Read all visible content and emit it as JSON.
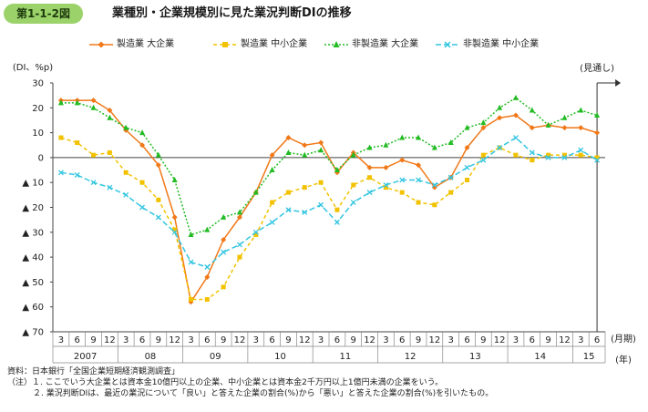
{
  "header": {
    "figure_number": "第1-1-2図",
    "title": "業種別・企業規模別に見た業況判断DIの推移"
  },
  "chart_data": {
    "type": "line",
    "ylabel": "(DI、%p)",
    "ylim": [
      -70,
      30
    ],
    "yticks": [
      30,
      20,
      10,
      0,
      -10,
      -20,
      -30,
      -40,
      -50,
      -60,
      -70
    ],
    "ytick_labels": [
      "30",
      "20",
      "10",
      "0",
      "▲ 10",
      "▲ 20",
      "▲ 30",
      "▲ 40",
      "▲ 50",
      "▲ 60",
      "▲ 70"
    ],
    "x": [
      "3",
      "6",
      "9",
      "12",
      "3",
      "6",
      "9",
      "12",
      "3",
      "6",
      "9",
      "12",
      "3",
      "6",
      "9",
      "12",
      "3",
      "6",
      "9",
      "12",
      "3",
      "6",
      "9",
      "12",
      "3",
      "6",
      "9",
      "12",
      "3",
      "6",
      "9",
      "12",
      "3",
      "6"
    ],
    "years": [
      {
        "label": "2007",
        "start": 0,
        "end": 3
      },
      {
        "label": "08",
        "start": 4,
        "end": 7
      },
      {
        "label": "09",
        "start": 8,
        "end": 11
      },
      {
        "label": "10",
        "start": 12,
        "end": 15
      },
      {
        "label": "11",
        "start": 16,
        "end": 19
      },
      {
        "label": "12",
        "start": 20,
        "end": 23
      },
      {
        "label": "13",
        "start": 24,
        "end": 27
      },
      {
        "label": "14",
        "start": 28,
        "end": 31
      },
      {
        "label": "15",
        "start": 32,
        "end": 33
      }
    ],
    "x_unit_label": "(月期)",
    "year_unit_label": "(年)",
    "forecast_label": "(見通し)",
    "forecast_index": 33,
    "grid": false,
    "legend_position": "top",
    "series": [
      {
        "name": "製造業 大企業",
        "color": "#f07818",
        "marker": "diamond",
        "dashed": false,
        "values": [
          23,
          23,
          23,
          19,
          11,
          5,
          -3,
          -24,
          -58,
          -48,
          -33,
          -24,
          -14,
          1,
          8,
          5,
          6,
          -6,
          2,
          -4,
          -4,
          -1,
          -3,
          -12,
          -8,
          4,
          12,
          16,
          17,
          12,
          13,
          12,
          12,
          10
        ]
      },
      {
        "name": "製造業 中小企業",
        "color": "#f2c200",
        "marker": "square",
        "dashed": true,
        "values": [
          8,
          6,
          1,
          2,
          -6,
          -10,
          -17,
          -29,
          -57,
          -57,
          -52,
          -40,
          -31,
          -18,
          -14,
          -12,
          -10,
          -21,
          -11,
          -8,
          -12,
          -14,
          -18,
          -19,
          -14,
          -9,
          1,
          4,
          1,
          -1,
          1,
          1,
          1,
          0
        ]
      },
      {
        "name": "非製造業 大企業",
        "color": "#22bb22",
        "marker": "triangle",
        "dashed": true,
        "values": [
          22,
          22,
          20,
          16,
          12,
          10,
          1,
          -9,
          -31,
          -29,
          -24,
          -22,
          -14,
          -5,
          2,
          1,
          3,
          -5,
          1,
          4,
          5,
          8,
          8,
          4,
          6,
          12,
          14,
          20,
          24,
          19,
          13,
          16,
          19,
          17
        ]
      },
      {
        "name": "非製造業 中小企業",
        "color": "#33c6e0",
        "marker": "x",
        "dashed": true,
        "values": [
          -6,
          -7,
          -10,
          -12,
          -15,
          -20,
          -24,
          -30,
          -42,
          -44,
          -38,
          -35,
          -30,
          -26,
          -21,
          -22,
          -19,
          -26,
          -18,
          -14,
          -11,
          -9,
          -9,
          -11,
          -8,
          -4,
          -1,
          4,
          8,
          2,
          0,
          0,
          3,
          -1
        ]
      }
    ]
  },
  "notes": {
    "source": "資料：日本銀行「全国企業短期経済観測調査」",
    "note1": "（注）１. ここでいう大企業とは資本金10億円以上の企業、中小企業とは資本金2千万円以上1億円未満の企業をいう。",
    "note2": "２. 業況判断DIは、最近の業況について「良い」と答えた企業の割合(%)から「悪い」と答えた企業の割合(%)を引いたもの。"
  }
}
